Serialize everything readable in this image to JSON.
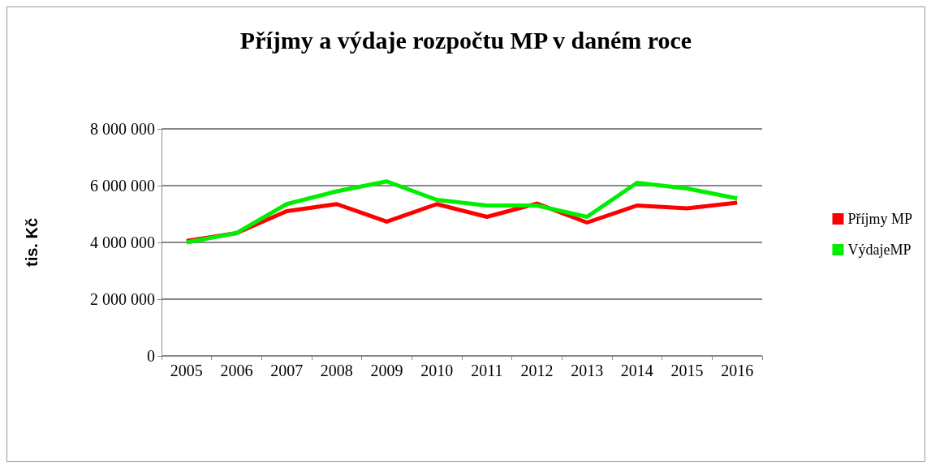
{
  "chart_data": {
    "type": "line",
    "title": "Příjmy a výdaje rozpočtu MP v daném roce",
    "ylabel": "tis. Kč",
    "categories": [
      "2005",
      "2006",
      "2007",
      "2008",
      "2009",
      "2010",
      "2011",
      "2012",
      "2013",
      "2014",
      "2015",
      "2016"
    ],
    "series": [
      {
        "name": "Příjmy MP",
        "color": "#ff0000",
        "values": [
          4050000,
          4330000,
          5100000,
          5350000,
          4730000,
          5350000,
          4900000,
          5370000,
          4700000,
          5300000,
          5200000,
          5400000
        ]
      },
      {
        "name": "VýdajeMP",
        "color": "#00ee00",
        "values": [
          4000000,
          4330000,
          5350000,
          5800000,
          6150000,
          5500000,
          5300000,
          5300000,
          4900000,
          6100000,
          5900000,
          5550000
        ]
      }
    ],
    "ylim": [
      0,
      8000000
    ],
    "yticks": [
      0,
      2000000,
      4000000,
      6000000,
      8000000
    ],
    "grid": "y",
    "legend": "right",
    "marker": "none"
  }
}
